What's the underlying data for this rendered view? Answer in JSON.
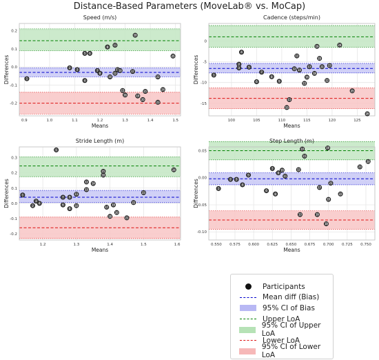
{
  "figure": {
    "title": "Distance-Based Parameters (MoveLab® vs. MoCap)"
  },
  "colors": {
    "bias": "#0000cc",
    "bias_fill": "#c8c8f6",
    "upper": "#008000",
    "upper_fill": "#c3e6c3",
    "lower": "#dd1111",
    "lower_fill": "#f8c6c6",
    "point": "#111111"
  },
  "legend": {
    "items": [
      {
        "label": "Participants",
        "kind": "dot",
        "color": "#111111"
      },
      {
        "label": "Mean diff (Bias)",
        "kind": "dash",
        "color": "#0000cc"
      },
      {
        "label": "95% CI of Bias",
        "kind": "patch",
        "color": "#b8b8f4"
      },
      {
        "label": "Upper LoA",
        "kind": "dash",
        "color": "#008000"
      },
      {
        "label": "95% CI of Upper LoA",
        "kind": "patch",
        "color": "#b6e2b6"
      },
      {
        "label": "Lower LoA",
        "kind": "dash",
        "color": "#dd1111"
      },
      {
        "label": "95% CI of Lower LoA",
        "kind": "patch",
        "color": "#f6b8b8"
      }
    ]
  },
  "chart_data": [
    {
      "type": "scatter",
      "title": "Speed (m/s)",
      "xlabel": "Means",
      "ylabel": "Differences",
      "xlim": [
        0.88,
        1.52
      ],
      "ylim": [
        -0.27,
        0.24
      ],
      "xticks": [
        "0.9",
        "1.0",
        "1.1",
        "1.2",
        "1.3",
        "1.4",
        "1.5"
      ],
      "xtick_values": [
        0.9,
        1.0,
        1.1,
        1.2,
        1.3,
        1.4,
        1.5
      ],
      "yticks": [
        "-0.2",
        "-0.1",
        "0.0",
        "0.1",
        "0.2"
      ],
      "ytick_values": [
        -0.2,
        -0.1,
        0.0,
        0.1,
        0.2
      ],
      "bias": -0.03,
      "bias_ci": [
        -0.055,
        -0.005
      ],
      "upper_loa": 0.145,
      "upper_loa_ci": [
        0.09,
        0.21
      ],
      "lower_loa": -0.2,
      "lower_loa_ci": [
        -0.26,
        -0.14
      ],
      "grid": true,
      "points": [
        {
          "x": 0.91,
          "y": -0.065,
          "label": "1"
        },
        {
          "x": 1.08,
          "y": -0.005,
          "label": "2"
        },
        {
          "x": 1.11,
          "y": -0.015,
          "label": "3"
        },
        {
          "x": 1.14,
          "y": -0.075,
          "label": "4"
        },
        {
          "x": 1.14,
          "y": 0.075,
          "label": "5"
        },
        {
          "x": 1.16,
          "y": 0.075,
          "label": "6"
        },
        {
          "x": 1.19,
          "y": -0.02,
          "label": "7"
        },
        {
          "x": 1.2,
          "y": -0.035,
          "label": "8"
        },
        {
          "x": 1.23,
          "y": 0.11,
          "label": "9"
        },
        {
          "x": 1.24,
          "y": -0.055,
          "label": "10"
        },
        {
          "x": 1.26,
          "y": 0.12,
          "label": "11"
        },
        {
          "x": 1.26,
          "y": -0.035,
          "label": "12"
        },
        {
          "x": 1.27,
          "y": -0.015,
          "label": "13"
        },
        {
          "x": 1.28,
          "y": -0.02,
          "label": "14"
        },
        {
          "x": 1.29,
          "y": -0.13,
          "label": "15"
        },
        {
          "x": 1.3,
          "y": -0.155,
          "label": "16"
        },
        {
          "x": 1.33,
          "y": -0.025,
          "label": "17"
        },
        {
          "x": 1.34,
          "y": 0.175,
          "label": "18"
        },
        {
          "x": 1.35,
          "y": -0.16,
          "label": "19"
        },
        {
          "x": 1.37,
          "y": -0.18,
          "label": "20"
        },
        {
          "x": 1.38,
          "y": -0.135,
          "label": "21"
        },
        {
          "x": 1.43,
          "y": -0.055,
          "label": "22"
        },
        {
          "x": 1.43,
          "y": -0.195,
          "label": "23"
        },
        {
          "x": 1.45,
          "y": -0.125,
          "label": "24"
        },
        {
          "x": 1.49,
          "y": 0.06,
          "label": "25"
        }
      ]
    },
    {
      "type": "scatter",
      "title": "Cadence (steps/min)",
      "xlabel": "Means",
      "ylabel": "Differences",
      "xlim": [
        95.5,
        128.5
      ],
      "ylim": [
        -18,
        4.2
      ],
      "xticks": [
        "100",
        "105",
        "110",
        "115",
        "120",
        "125"
      ],
      "xtick_values": [
        100,
        105,
        110,
        115,
        120,
        125
      ],
      "yticks": [
        "-15",
        "-10",
        "-5",
        "0"
      ],
      "ytick_values": [
        -15,
        -10,
        -5,
        0
      ],
      "bias": -6.6,
      "bias_ci": [
        -7.7,
        -5.4
      ],
      "upper_loa": 1.0,
      "upper_loa_ci": [
        -1.5,
        3.7
      ],
      "lower_loa": -13.8,
      "lower_loa_ci": [
        -16.3,
        -11.3
      ],
      "grid": true,
      "points": [
        {
          "x": 96.5,
          "y": -8.2,
          "label": "1"
        },
        {
          "x": 101.5,
          "y": -5.6,
          "label": "2"
        },
        {
          "x": 101.5,
          "y": -6.5,
          "label": "3"
        },
        {
          "x": 102,
          "y": -2.7,
          "label": "4"
        },
        {
          "x": 103.5,
          "y": -6.3,
          "label": "5"
        },
        {
          "x": 105,
          "y": -9.8,
          "label": "6"
        },
        {
          "x": 106,
          "y": -7.5,
          "label": "7"
        },
        {
          "x": 108,
          "y": -8.6,
          "label": "8"
        },
        {
          "x": 109.5,
          "y": -9.7,
          "label": "9"
        },
        {
          "x": 111,
          "y": -16.0,
          "label": "10"
        },
        {
          "x": 111.5,
          "y": -14.1,
          "label": "11"
        },
        {
          "x": 112.5,
          "y": -6.7,
          "label": "12"
        },
        {
          "x": 113,
          "y": -3.6,
          "label": "13"
        },
        {
          "x": 113.5,
          "y": -7.0,
          "label": "14"
        },
        {
          "x": 114.5,
          "y": -10.2,
          "label": "15"
        },
        {
          "x": 115,
          "y": -8.7,
          "label": "16"
        },
        {
          "x": 115.5,
          "y": -6.2,
          "label": "17"
        },
        {
          "x": 116.5,
          "y": -7.8,
          "label": "18"
        },
        {
          "x": 117,
          "y": -1.3,
          "label": "19"
        },
        {
          "x": 117.5,
          "y": -4.2,
          "label": "20"
        },
        {
          "x": 118,
          "y": -6.2,
          "label": "21"
        },
        {
          "x": 119,
          "y": -9.5,
          "label": "22"
        },
        {
          "x": 119.5,
          "y": -5.9,
          "label": "23"
        },
        {
          "x": 121.5,
          "y": -1.0,
          "label": "24"
        },
        {
          "x": 124,
          "y": -12.0,
          "label": "25"
        },
        {
          "x": 127,
          "y": -17.5,
          "label": "26"
        }
      ]
    },
    {
      "type": "scatter",
      "title": "Stride Length (m)",
      "xlabel": "Means",
      "ylabel": "Differences",
      "xlim": [
        1.13,
        1.61
      ],
      "ylim": [
        -0.24,
        0.37
      ],
      "xticks": [
        "1.2",
        "1.3",
        "1.4",
        "1.5",
        "1.6"
      ],
      "xtick_values": [
        1.2,
        1.3,
        1.4,
        1.5,
        1.6
      ],
      "yticks": [
        "-0.2",
        "-0.1",
        "0.0",
        "0.1",
        "0.2",
        "0.3"
      ],
      "ytick_values": [
        -0.2,
        -0.1,
        0.0,
        0.1,
        0.2,
        0.3
      ],
      "bias": 0.04,
      "bias_ci": [
        0.005,
        0.085
      ],
      "upper_loa": 0.245,
      "upper_loa_ci": [
        0.175,
        0.305
      ],
      "lower_loa": -0.16,
      "lower_loa_ci": [
        -0.23,
        -0.09
      ],
      "grid": true,
      "points": [
        {
          "x": 1.14,
          "y": 0.055,
          "label": "1"
        },
        {
          "x": 1.17,
          "y": -0.015,
          "label": "2"
        },
        {
          "x": 1.18,
          "y": 0.015,
          "label": "3"
        },
        {
          "x": 1.19,
          "y": 0.0,
          "label": "4"
        },
        {
          "x": 1.24,
          "y": 0.35,
          "label": "5"
        },
        {
          "x": 1.26,
          "y": -0.01,
          "label": "6"
        },
        {
          "x": 1.26,
          "y": 0.04,
          "label": "7"
        },
        {
          "x": 1.28,
          "y": -0.035,
          "label": "8"
        },
        {
          "x": 1.28,
          "y": 0.04,
          "label": "9"
        },
        {
          "x": 1.3,
          "y": -0.015,
          "label": "10"
        },
        {
          "x": 1.3,
          "y": 0.06,
          "label": "11"
        },
        {
          "x": 1.33,
          "y": 0.14,
          "label": "12"
        },
        {
          "x": 1.33,
          "y": 0.09,
          "label": "13"
        },
        {
          "x": 1.35,
          "y": 0.13,
          "label": "14"
        },
        {
          "x": 1.38,
          "y": 0.21,
          "label": "15"
        },
        {
          "x": 1.38,
          "y": 0.185,
          "label": "16"
        },
        {
          "x": 1.39,
          "y": -0.025,
          "label": "17"
        },
        {
          "x": 1.4,
          "y": -0.085,
          "label": "18"
        },
        {
          "x": 1.41,
          "y": -0.01,
          "label": "19"
        },
        {
          "x": 1.42,
          "y": -0.06,
          "label": "20"
        },
        {
          "x": 1.45,
          "y": -0.095,
          "label": "21"
        },
        {
          "x": 1.47,
          "y": 0.005,
          "label": "22"
        },
        {
          "x": 1.5,
          "y": 0.07,
          "label": "23"
        },
        {
          "x": 1.59,
          "y": 0.22,
          "label": "24"
        }
      ]
    },
    {
      "type": "scatter",
      "title": "Step Length (m)",
      "xlabel": "Means",
      "ylabel": "Differences",
      "xlim": [
        0.54,
        0.762
      ],
      "ylim": [
        -0.115,
        0.057
      ],
      "xticks": [
        "0.550",
        "0.575",
        "0.600",
        "0.625",
        "0.650",
        "0.675",
        "0.700",
        "0.725",
        "0.750"
      ],
      "xtick_values": [
        0.55,
        0.575,
        0.6,
        0.625,
        0.65,
        0.675,
        0.7,
        0.725,
        0.75
      ],
      "yticks": [
        "-0.10",
        "-0.05",
        "0.00",
        "0.05"
      ],
      "ytick_values": [
        -0.1,
        -0.05,
        0.0,
        0.05
      ],
      "bias": -0.002,
      "bias_ci": [
        -0.013,
        0.009
      ],
      "upper_loa": 0.05,
      "upper_loa_ci": [
        0.033,
        0.067
      ],
      "lower_loa": -0.078,
      "lower_loa_ci": [
        -0.095,
        -0.061
      ],
      "grid": true,
      "points": [
        {
          "x": 0.553,
          "y": -0.02,
          "label": "1"
        },
        {
          "x": 0.569,
          "y": -0.003,
          "label": "2"
        },
        {
          "x": 0.577,
          "y": -0.003,
          "label": "3"
        },
        {
          "x": 0.585,
          "y": -0.013,
          "label": "4"
        },
        {
          "x": 0.593,
          "y": 0.005,
          "label": "5"
        },
        {
          "x": 0.617,
          "y": -0.024,
          "label": "6"
        },
        {
          "x": 0.625,
          "y": 0.017,
          "label": "7"
        },
        {
          "x": 0.629,
          "y": -0.03,
          "label": "8"
        },
        {
          "x": 0.633,
          "y": 0.009,
          "label": "9"
        },
        {
          "x": 0.638,
          "y": 0.014,
          "label": "10"
        },
        {
          "x": 0.642,
          "y": 0.003,
          "label": "11"
        },
        {
          "x": 0.66,
          "y": 0.015,
          "label": "12"
        },
        {
          "x": 0.662,
          "y": -0.068,
          "label": "13"
        },
        {
          "x": 0.665,
          "y": 0.053,
          "label": "14"
        },
        {
          "x": 0.668,
          "y": 0.04,
          "label": "15"
        },
        {
          "x": 0.685,
          "y": -0.068,
          "label": "16"
        },
        {
          "x": 0.688,
          "y": -0.018,
          "label": "17"
        },
        {
          "x": 0.697,
          "y": -0.085,
          "label": "18"
        },
        {
          "x": 0.699,
          "y": 0.055,
          "label": "19"
        },
        {
          "x": 0.7,
          "y": -0.04,
          "label": "20"
        },
        {
          "x": 0.703,
          "y": -0.01,
          "label": "21"
        },
        {
          "x": 0.716,
          "y": -0.03,
          "label": "22"
        },
        {
          "x": 0.742,
          "y": 0.02,
          "label": "23"
        },
        {
          "x": 0.753,
          "y": 0.03,
          "label": "24"
        }
      ]
    }
  ]
}
